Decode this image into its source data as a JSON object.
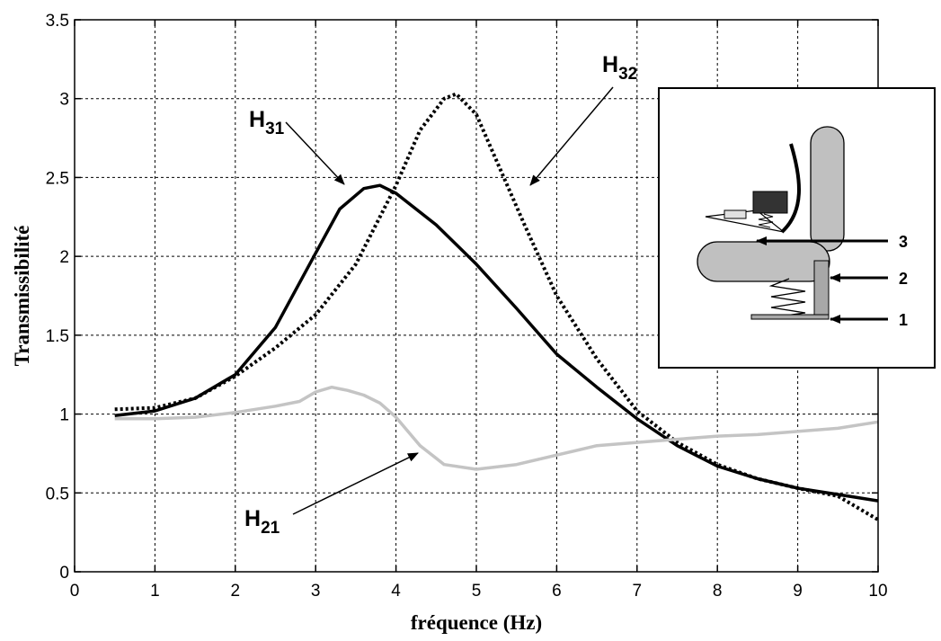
{
  "chart_data": {
    "type": "line",
    "xlabel": "fréquence (Hz)",
    "ylabel": "Transmissibilité",
    "xlim": [
      0,
      10
    ],
    "ylim": [
      0,
      3.5
    ],
    "grid": true,
    "x_ticks": [
      "0",
      "1",
      "2",
      "3",
      "4",
      "5",
      "6",
      "7",
      "8",
      "9",
      "10"
    ],
    "y_ticks": [
      "0",
      "0.5",
      "1",
      "1.5",
      "2",
      "2.5",
      "3",
      "3.5"
    ],
    "series": [
      {
        "name": "H31",
        "color": "#000000",
        "style": "solid",
        "x": [
          0.5,
          1.0,
          1.5,
          2.0,
          2.5,
          3.0,
          3.3,
          3.6,
          3.8,
          4.0,
          4.5,
          5.0,
          5.5,
          6.0,
          6.5,
          7.0,
          7.5,
          8.0,
          8.5,
          9.0,
          9.5,
          10.0
        ],
        "y": [
          0.99,
          1.02,
          1.1,
          1.25,
          1.55,
          2.02,
          2.3,
          2.43,
          2.45,
          2.4,
          2.2,
          1.95,
          1.67,
          1.38,
          1.17,
          0.97,
          0.8,
          0.67,
          0.59,
          0.53,
          0.49,
          0.45
        ]
      },
      {
        "name": "H32",
        "color": "#000000",
        "style": "dotted",
        "x": [
          0.5,
          1.0,
          1.5,
          2.0,
          2.5,
          3.0,
          3.5,
          4.0,
          4.3,
          4.6,
          4.75,
          5.0,
          5.3,
          5.6,
          6.0,
          6.5,
          7.0,
          7.5,
          8.0,
          8.5,
          9.0,
          9.5,
          10.0
        ],
        "y": [
          1.03,
          1.04,
          1.1,
          1.24,
          1.42,
          1.63,
          1.95,
          2.45,
          2.8,
          3.0,
          3.03,
          2.9,
          2.55,
          2.2,
          1.75,
          1.35,
          1.02,
          0.82,
          0.68,
          0.59,
          0.53,
          0.48,
          0.33
        ]
      },
      {
        "name": "H21",
        "color": "#c4c4c4",
        "style": "solid",
        "x": [
          0.5,
          1.0,
          1.5,
          2.0,
          2.5,
          2.8,
          3.0,
          3.2,
          3.4,
          3.6,
          3.8,
          4.0,
          4.3,
          4.6,
          5.0,
          5.5,
          6.0,
          6.5,
          7.0,
          7.5,
          8.0,
          8.5,
          9.0,
          9.5,
          10.0
        ],
        "y": [
          0.97,
          0.97,
          0.98,
          1.01,
          1.05,
          1.08,
          1.14,
          1.17,
          1.15,
          1.12,
          1.07,
          0.98,
          0.8,
          0.68,
          0.65,
          0.68,
          0.74,
          0.8,
          0.82,
          0.84,
          0.86,
          0.87,
          0.89,
          0.91,
          0.95
        ]
      }
    ],
    "annotations": [
      {
        "main": "H",
        "sub": "31",
        "series": "H31"
      },
      {
        "main": "H",
        "sub": "32",
        "series": "H32"
      },
      {
        "main": "H",
        "sub": "21",
        "series": "H21"
      }
    ],
    "inset_labels": [
      "3",
      "2",
      "1"
    ]
  }
}
